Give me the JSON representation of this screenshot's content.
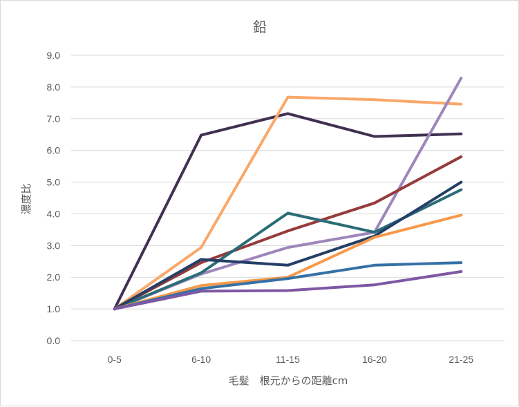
{
  "chart_data": {
    "type": "line",
    "title": "鉛",
    "xlabel": "毛髪　根元からの距離cm",
    "ylabel": "濃度比",
    "categories": [
      "0-5",
      "6-10",
      "11-15",
      "16-20",
      "21-25"
    ],
    "ylim": [
      0,
      9
    ],
    "yticks": [
      "0.0",
      "1.0",
      "2.0",
      "3.0",
      "4.0",
      "5.0",
      "6.0",
      "7.0",
      "8.0",
      "9.0"
    ],
    "grid": true,
    "legend": "none",
    "series": [
      {
        "color": "#403152",
        "values": [
          1.0,
          6.48,
          7.16,
          6.44,
          6.52
        ]
      },
      {
        "color": "#F9A86A",
        "values": [
          1.0,
          2.94,
          7.68,
          7.6,
          7.46
        ]
      },
      {
        "color": "#9E86BB",
        "values": [
          1.0,
          2.1,
          2.94,
          3.42,
          8.28
        ]
      },
      {
        "color": "#963B3B",
        "values": [
          1.0,
          2.46,
          3.46,
          4.34,
          5.8
        ]
      },
      {
        "color": "#2A6C77",
        "values": [
          1.0,
          2.14,
          4.02,
          3.42,
          4.76
        ]
      },
      {
        "color": "#243F67",
        "values": [
          1.0,
          2.56,
          2.38,
          3.3,
          5.0
        ]
      },
      {
        "color": "#F69A4A",
        "values": [
          1.0,
          1.74,
          2.0,
          3.26,
          3.96
        ]
      },
      {
        "color": "#3670A6",
        "values": [
          1.0,
          1.64,
          1.96,
          2.38,
          2.46
        ]
      },
      {
        "color": "#7E58A4",
        "values": [
          1.0,
          1.56,
          1.58,
          1.76,
          2.18
        ]
      }
    ]
  }
}
